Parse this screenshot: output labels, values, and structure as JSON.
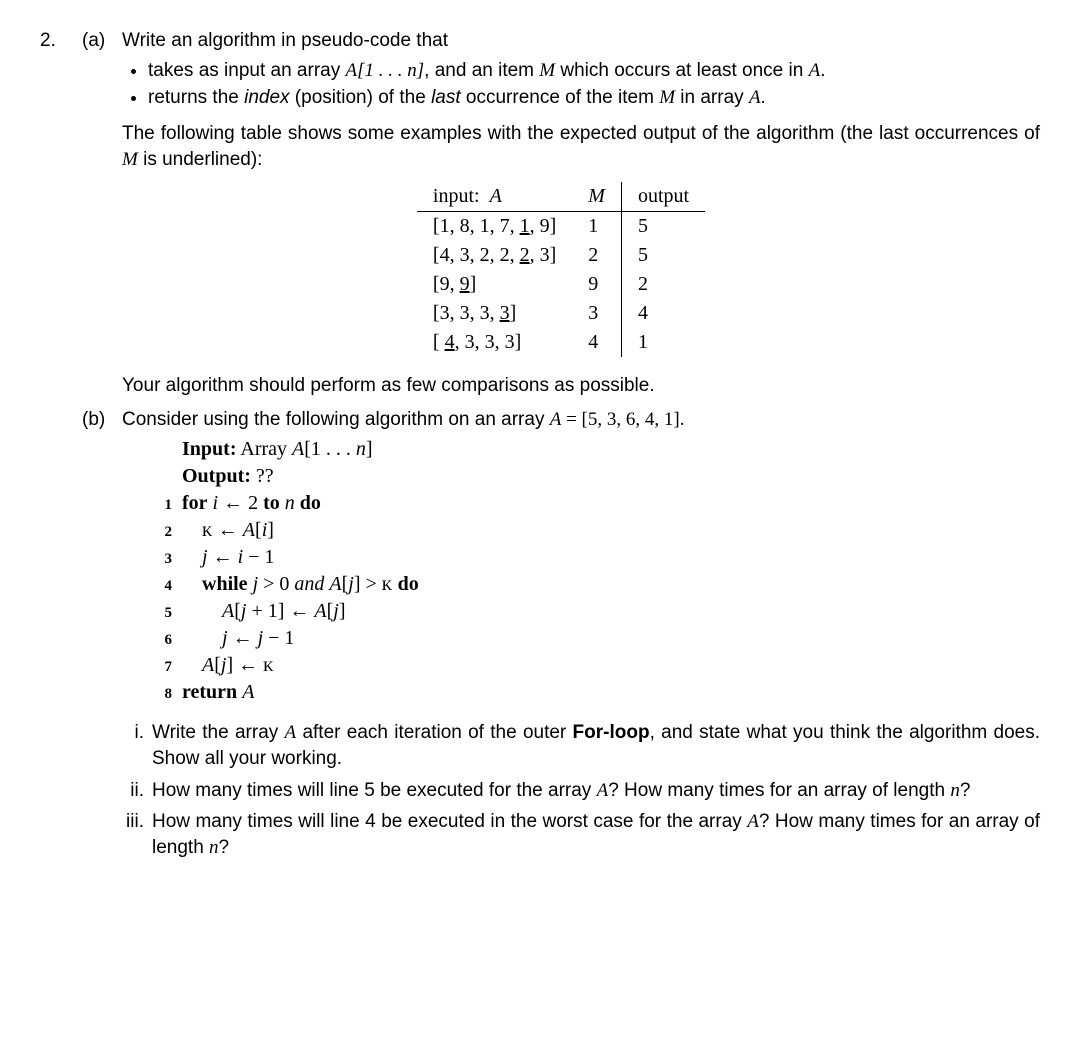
{
  "question_number": "2.",
  "part_a": {
    "letter": "(a)",
    "intro": "Write an algorithm in pseudo-code that",
    "bullet1_before": "takes as input an array ",
    "bullet1_arr": "A[1 . . . n]",
    "bullet1_mid": ", and an item ",
    "bullet1_M": "M",
    "bullet1_after": " which occurs at least once in ",
    "bullet1_A": "A",
    "bullet1_end": ".",
    "bullet2_before": "returns the ",
    "bullet2_index": "index",
    "bullet2_mid1": " (position) of the ",
    "bullet2_last": "last",
    "bullet2_mid2": " occurrence of the item ",
    "bullet2_M": "M",
    "bullet2_mid3": " in array ",
    "bullet2_A": "A",
    "bullet2_end": ".",
    "table_intro_1": "The following table shows some examples with the expected output of the algorithm (the last occurrences of ",
    "table_intro_M": "M",
    "table_intro_2": " is underlined):",
    "table": {
      "header_input": "input:",
      "header_A": "A",
      "header_M": "M",
      "header_output": "output",
      "rows": [
        {
          "A_pre": "[1, 8, 1, 7, ",
          "A_u": "1",
          "A_post": ", 9]",
          "M": "1",
          "out": "5"
        },
        {
          "A_pre": "[4, 3, 2, 2, ",
          "A_u": "2",
          "A_post": ", 3]",
          "M": "2",
          "out": "5"
        },
        {
          "A_pre": "[9, ",
          "A_u": "9",
          "A_post": "]",
          "M": "9",
          "out": "2"
        },
        {
          "A_pre": "[3, 3, 3, ",
          "A_u": "3",
          "A_post": "]",
          "M": "3",
          "out": "4"
        },
        {
          "A_pre": "[ ",
          "A_u": "4",
          "A_post": ", 3, 3, 3]",
          "M": "4",
          "out": "1"
        }
      ]
    },
    "closing": "Your algorithm should perform as few comparisons as possible."
  },
  "part_b": {
    "letter": "(b)",
    "intro_1": "Consider using the following algorithm on an array ",
    "intro_A": "A",
    "intro_eq": " = [5, 3, 6, 4, 1].",
    "algo": {
      "input_label": "Input:",
      "input_text": " Array A[1 . . . n]",
      "output_label": "Output:",
      "output_text": " ??",
      "lines": [
        {
          "n": "1",
          "t": "for i ← 2 to n do",
          "bold_words": [
            "for",
            "to",
            "do"
          ]
        },
        {
          "n": "2",
          "t": "    ᴋ ← A[i]"
        },
        {
          "n": "3",
          "t": "    j ← i − 1"
        },
        {
          "n": "4",
          "t": "    while j > 0 and A[j] > ᴋ do",
          "bold_words": [
            "while",
            "do"
          ],
          "italic_words": [
            "and"
          ]
        },
        {
          "n": "5",
          "t": "        A[j + 1] ← A[j]"
        },
        {
          "n": "6",
          "t": "        j ← j − 1"
        },
        {
          "n": "7",
          "t": "    A[j] ← ᴋ"
        },
        {
          "n": "8",
          "t": "return A",
          "bold_words": [
            "return"
          ]
        }
      ]
    },
    "i": {
      "num": "i.",
      "t1": "Write the array ",
      "A": "A",
      "t2": " after each iteration of the outer ",
      "for": "For-loop",
      "t3": ", and state what you think the algorithm does. Show all your working."
    },
    "ii": {
      "num": "ii.",
      "t1": "How many times will line 5 be executed for the array ",
      "A": "A",
      "t2": "? How many times for an array of length ",
      "n": "n",
      "t3": "?"
    },
    "iii": {
      "num": "iii.",
      "t1": "How many times will line 4 be executed in the worst case for the array ",
      "A": "A",
      "t2": "? How many times for an array of length ",
      "n": "n",
      "t3": "?"
    }
  }
}
